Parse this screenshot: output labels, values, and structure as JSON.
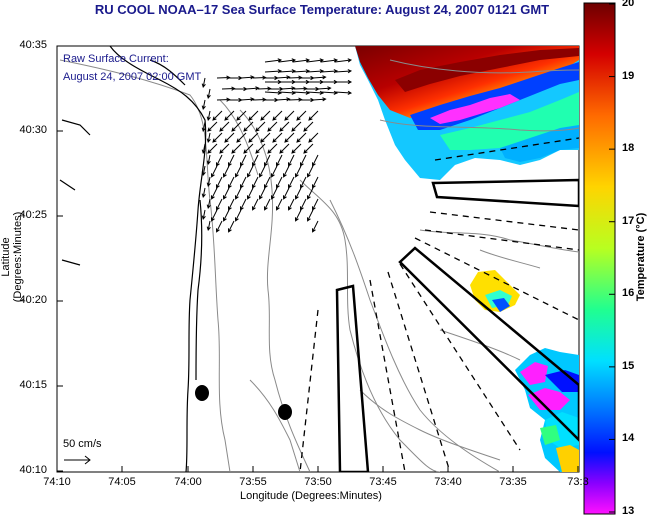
{
  "title": "RU COOL  NOAA–17  Sea Surface Temperature:  August 24, 2007 0121 GMT",
  "current_label_1": "Raw Surface Current:",
  "current_label_2": "August 24, 2007 02:00 GMT",
  "x_axis_title": "Longitude (Degrees:Minutes)",
  "y_axis_title": "Latitude (Degrees:Minutes)",
  "colorbar_title": "Temperature (°C)",
  "scale_label": "50 cm/s",
  "x_ticks": [
    "74:10",
    "74:05",
    "74:00",
    "73:55",
    "73:50",
    "73:45",
    "73:40",
    "73:35",
    "73:3"
  ],
  "y_ticks": [
    "40:35",
    "40:30",
    "40:25",
    "40:20",
    "40:15",
    "40:10"
  ],
  "colorbar_ticks": [
    "20",
    "19",
    "18",
    "17",
    "16",
    "15",
    "14",
    "13"
  ],
  "colors": {
    "title": "#1a1a8c",
    "colorbar_stops": [
      "#7a0000",
      "#d40000",
      "#ff6a00",
      "#ffd000",
      "#c8ff00",
      "#30ff80",
      "#00e8ff",
      "#0080ff",
      "#0010ff",
      "#8000ff",
      "#ff00ff"
    ]
  }
}
